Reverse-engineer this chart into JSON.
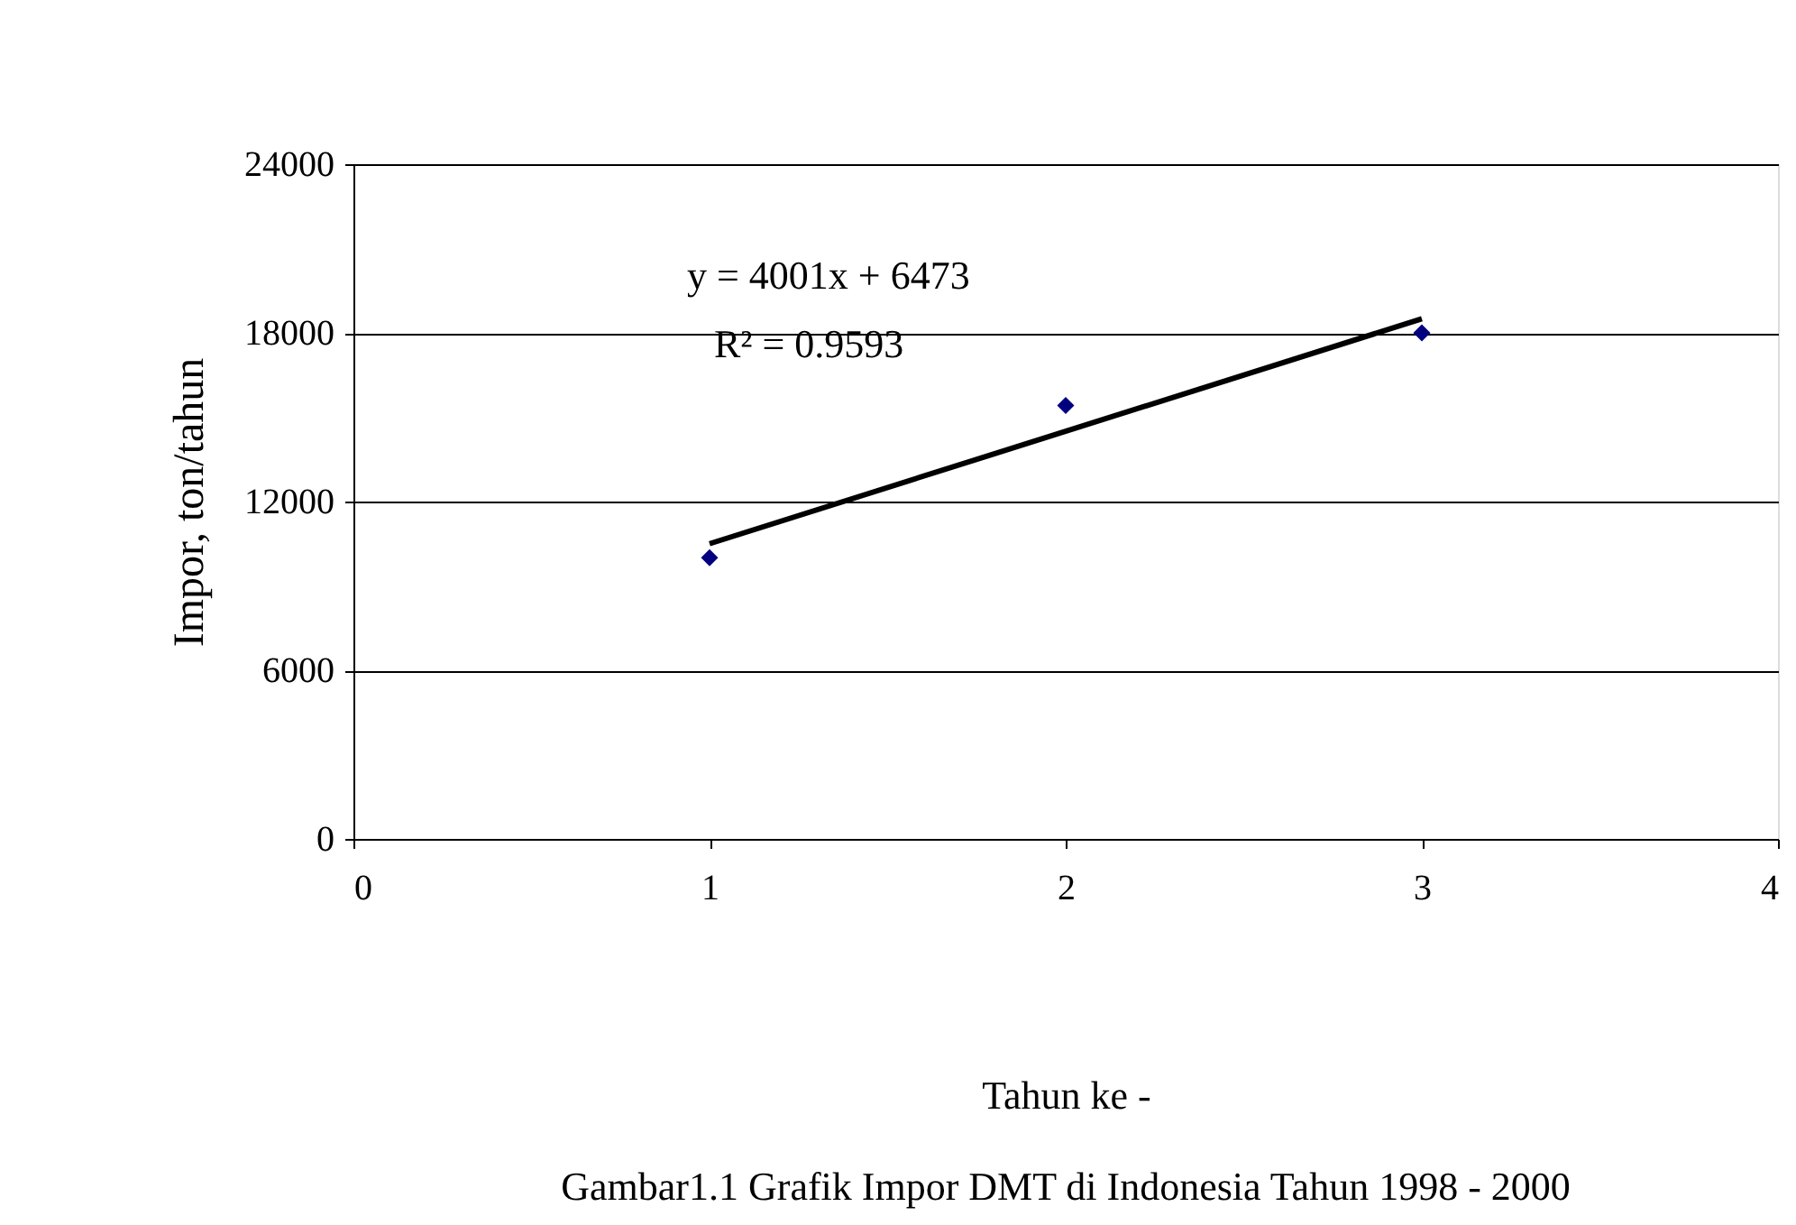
{
  "chart_data": {
    "type": "scatter",
    "title": "Gambar1.1    Grafik Impor DMT di Indonesia Tahun 1998 - 2000",
    "xlabel": "Tahun ke -",
    "ylabel": "Impor, ton/tahun",
    "series": [
      {
        "type": "scatter",
        "color": "#000080",
        "marker": "diamond",
        "x": [
          1,
          2,
          3
        ],
        "values": [
          10000,
          15420,
          18000
        ]
      },
      {
        "type": "line",
        "color": "#000000",
        "x": [
          1,
          3
        ],
        "values": [
          10500,
          18500
        ]
      }
    ],
    "annotations": [
      "y = 4001x + 6473",
      "R² = 0.9593"
    ],
    "xlim": [
      0,
      4
    ],
    "xticks": [
      0,
      1,
      2,
      3,
      4
    ],
    "ylim": [
      0,
      24000
    ],
    "yticks": [
      0,
      6000,
      12000,
      18000,
      24000
    ],
    "grid": "y"
  }
}
